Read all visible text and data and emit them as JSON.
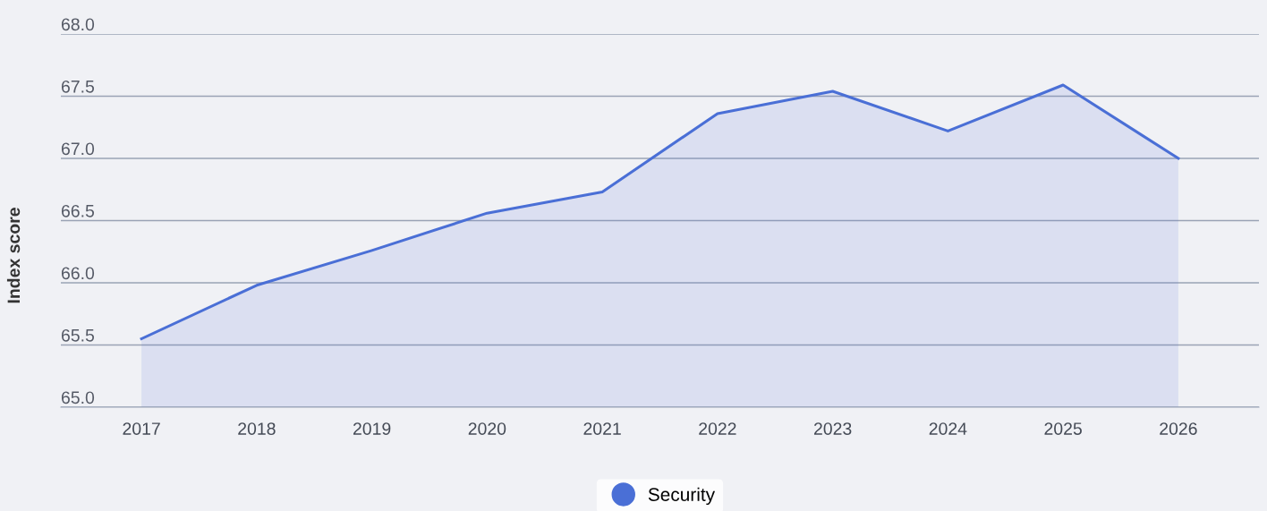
{
  "chart_data": {
    "type": "area",
    "ylabel": "Index score",
    "categories": [
      "2017",
      "2018",
      "2019",
      "2020",
      "2021",
      "2022",
      "2023",
      "2024",
      "2025",
      "2026"
    ],
    "series": [
      {
        "name": "Security",
        "color": "#4a6fd6",
        "values": [
          65.55,
          65.98,
          66.26,
          66.56,
          66.73,
          67.36,
          67.54,
          67.22,
          67.59,
          67.0
        ]
      }
    ],
    "ylim": [
      65.0,
      68.0
    ],
    "yticks": [
      {
        "value": 65.0,
        "label": "65.0"
      },
      {
        "value": 65.5,
        "label": "65.5"
      },
      {
        "value": 66.0,
        "label": "66.0"
      },
      {
        "value": 66.5,
        "label": "66.5"
      },
      {
        "value": 67.0,
        "label": "67.0"
      },
      {
        "value": 67.5,
        "label": "67.5"
      },
      {
        "value": 68.0,
        "label": "68.0"
      }
    ],
    "grid": "y",
    "legend": "bottom"
  }
}
